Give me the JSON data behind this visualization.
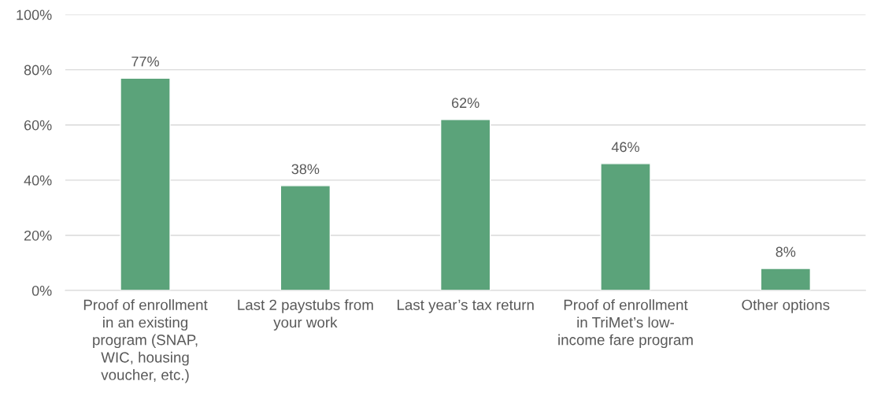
{
  "chart_data": {
    "type": "bar",
    "categories": [
      "Proof of enrollment\nin an existing\nprogram (SNAP,\nWIC, housing\nvoucher, etc.)",
      "Last 2 paystubs from\nyour work",
      "Last year’s tax return",
      "Proof of enrollment\nin TriMet’s low-\nincome fare program",
      "Other options"
    ],
    "values": [
      77,
      38,
      62,
      46,
      8
    ],
    "value_labels": [
      "77%",
      "38%",
      "62%",
      "46%",
      "8%"
    ],
    "color": "#5ba37a",
    "ylim": [
      0,
      100
    ],
    "yticks": [
      {
        "value": 0,
        "label": "0%"
      },
      {
        "value": 20,
        "label": "20%"
      },
      {
        "value": 40,
        "label": "40%"
      },
      {
        "value": 60,
        "label": "60%"
      },
      {
        "value": 80,
        "label": "80%"
      },
      {
        "value": 100,
        "label": "100%"
      }
    ],
    "grid": "y"
  }
}
